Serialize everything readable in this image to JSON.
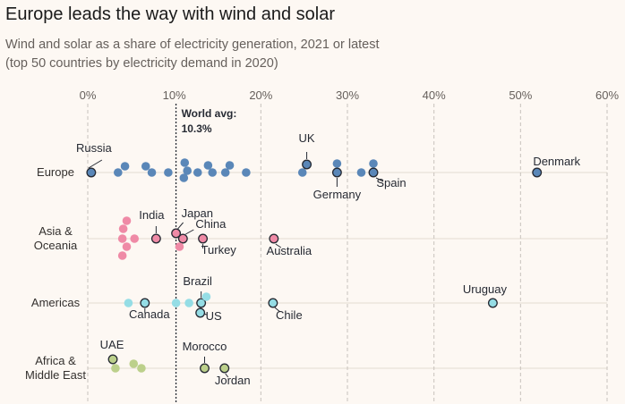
{
  "header": {
    "title": "Europe leads the way with wind and solar",
    "subtitle_line1": "Wind and solar as a share of electricity generation, 2021 or latest",
    "subtitle_line2": "(top 50 countries by electricity demand in 2020)"
  },
  "chart_data": {
    "type": "scatter",
    "title": "Europe leads the way with wind and solar",
    "xlabel": "",
    "ylabel": "",
    "xlim": [
      0,
      60
    ],
    "x_ticks": [
      0,
      10,
      20,
      30,
      40,
      50,
      60
    ],
    "x_tick_suffix": "%",
    "grid": true,
    "reference_line": {
      "value": 10.3,
      "label_line1": "World avg:",
      "label_line2": "10.3%"
    },
    "categories": [
      {
        "name": "Europe",
        "label_lines": [
          "Europe"
        ],
        "color": "#5a87b8"
      },
      {
        "name": "Asia & Oceania",
        "label_lines": [
          "Asia &",
          "Oceania"
        ],
        "color": "#ef8aa6"
      },
      {
        "name": "Americas",
        "label_lines": [
          "Americas"
        ],
        "color": "#95dde5"
      },
      {
        "name": "Africa & Middle East",
        "label_lines": [
          "Africa &",
          "Middle East"
        ],
        "color": "#bcd08b"
      }
    ],
    "series": [
      {
        "name": "Europe",
        "points": [
          {
            "x": 0.4,
            "offset": 0
          },
          {
            "x": 3.5,
            "offset": 0
          },
          {
            "x": 4.3,
            "offset": -7
          },
          {
            "x": 6.7,
            "offset": -7
          },
          {
            "x": 7.4,
            "offset": 0
          },
          {
            "x": 9.3,
            "offset": 0
          },
          {
            "x": 11.2,
            "offset": -11
          },
          {
            "x": 11.1,
            "offset": 6
          },
          {
            "x": 11.5,
            "offset": -2
          },
          {
            "x": 12.7,
            "offset": 0
          },
          {
            "x": 13.9,
            "offset": -8
          },
          {
            "x": 14.4,
            "offset": 0
          },
          {
            "x": 15.9,
            "offset": 0
          },
          {
            "x": 16.4,
            "offset": -8
          },
          {
            "x": 18.3,
            "offset": 0
          },
          {
            "x": 24.8,
            "offset": 0
          },
          {
            "x": 25.3,
            "offset": -9
          },
          {
            "x": 28.8,
            "offset": -10
          },
          {
            "x": 28.8,
            "offset": 0
          },
          {
            "x": 31.6,
            "offset": 0
          },
          {
            "x": 33.0,
            "offset": -10
          },
          {
            "x": 33.0,
            "offset": 0
          },
          {
            "x": 51.9,
            "offset": 0
          }
        ],
        "highlights": [
          {
            "name": "Russia",
            "x": 0.4,
            "offset": 0
          },
          {
            "name": "UK",
            "x": 25.3,
            "offset": -9
          },
          {
            "name": "Germany",
            "x": 28.8,
            "offset": 0
          },
          {
            "name": "Spain",
            "x": 33.0,
            "offset": 0
          },
          {
            "name": "Denmark",
            "x": 51.9,
            "offset": 0
          }
        ]
      },
      {
        "name": "Asia & Oceania",
        "points": [
          {
            "x": 4.1,
            "offset": -11
          },
          {
            "x": 4.5,
            "offset": -20
          },
          {
            "x": 4.0,
            "offset": 0
          },
          {
            "x": 5.4,
            "offset": 0
          },
          {
            "x": 4.5,
            "offset": 9
          },
          {
            "x": 4.0,
            "offset": 19
          },
          {
            "x": 7.9,
            "offset": 0
          },
          {
            "x": 10.2,
            "offset": -6
          },
          {
            "x": 11.0,
            "offset": 0
          },
          {
            "x": 10.6,
            "offset": 9
          },
          {
            "x": 13.3,
            "offset": 0
          },
          {
            "x": 21.5,
            "offset": 0
          }
        ],
        "highlights": [
          {
            "name": "India",
            "x": 7.9,
            "offset": 0
          },
          {
            "name": "Japan",
            "x": 10.2,
            "offset": -6
          },
          {
            "name": "China",
            "x": 11.0,
            "offset": 0
          },
          {
            "name": "Turkey",
            "x": 13.3,
            "offset": 0
          },
          {
            "name": "Australia",
            "x": 21.5,
            "offset": 0
          }
        ]
      },
      {
        "name": "Americas",
        "points": [
          {
            "x": 4.7,
            "offset": 0
          },
          {
            "x": 6.6,
            "offset": 0
          },
          {
            "x": 10.2,
            "offset": 0
          },
          {
            "x": 11.7,
            "offset": 0
          },
          {
            "x": 13.1,
            "offset": 0
          },
          {
            "x": 13.7,
            "offset": -7
          },
          {
            "x": 13.0,
            "offset": 11
          },
          {
            "x": 21.4,
            "offset": 0
          },
          {
            "x": 46.8,
            "offset": 0
          }
        ],
        "highlights": [
          {
            "name": "Canada",
            "x": 6.6,
            "offset": 0
          },
          {
            "name": "Brazil",
            "x": 13.1,
            "offset": 0
          },
          {
            "name": "US",
            "x": 13.0,
            "offset": 11
          },
          {
            "name": "Chile",
            "x": 21.4,
            "offset": 0
          },
          {
            "name": "Uruguay",
            "x": 46.8,
            "offset": 0
          }
        ]
      },
      {
        "name": "Africa & Middle East",
        "points": [
          {
            "x": 2.9,
            "offset": -10
          },
          {
            "x": 3.2,
            "offset": 0
          },
          {
            "x": 5.3,
            "offset": -5
          },
          {
            "x": 6.2,
            "offset": 0
          },
          {
            "x": 13.5,
            "offset": 0
          },
          {
            "x": 15.8,
            "offset": 0
          }
        ],
        "highlights": [
          {
            "name": "UAE",
            "x": 2.9,
            "offset": -10
          },
          {
            "name": "Morocco",
            "x": 13.5,
            "offset": 0
          },
          {
            "name": "Jordan",
            "x": 15.8,
            "offset": 0
          }
        ]
      }
    ]
  }
}
